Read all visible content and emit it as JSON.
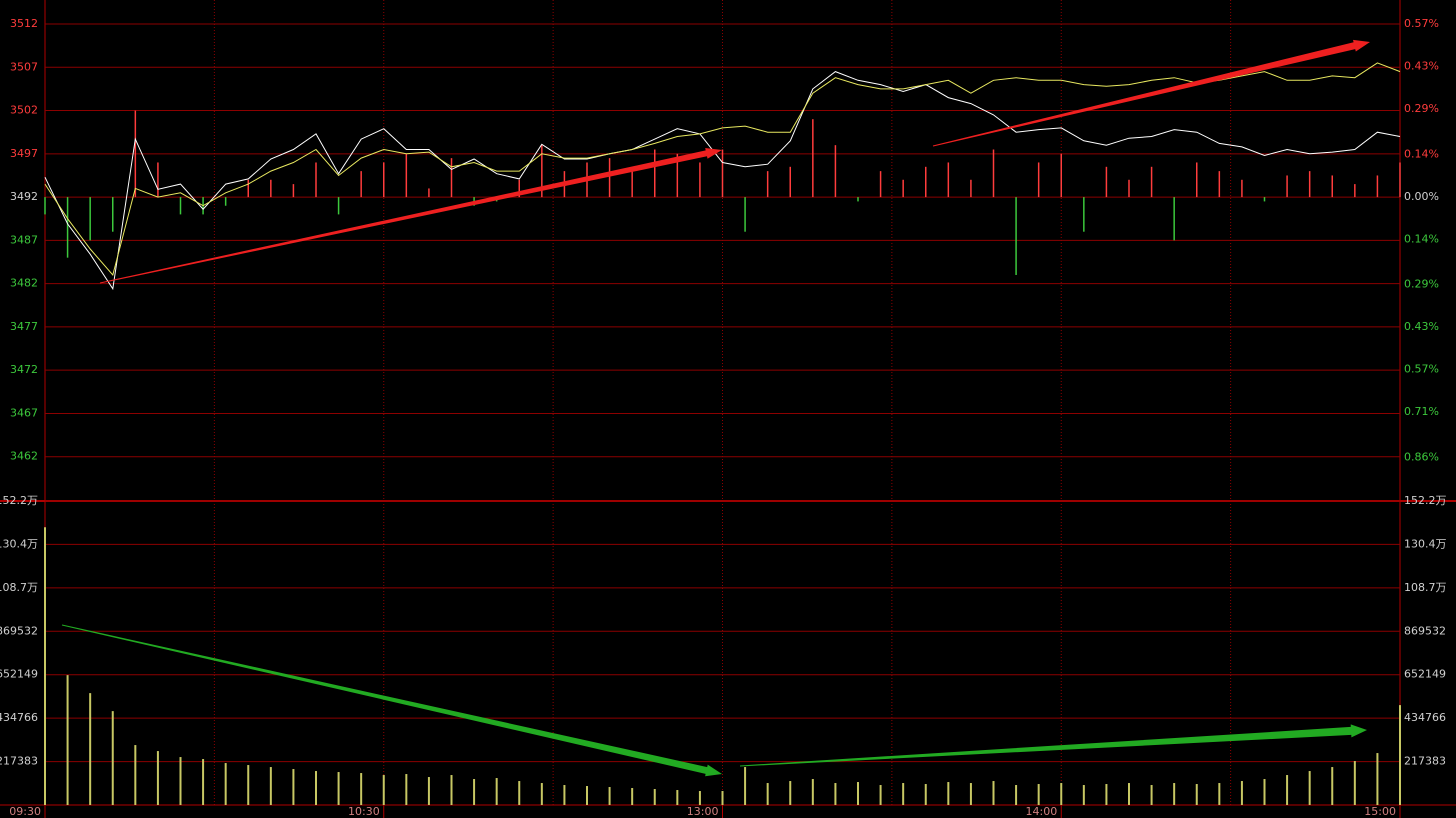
{
  "chart_data": [
    {
      "type": "line",
      "base": 3492,
      "ylim": [
        3457,
        3512
      ],
      "yticks": [
        3462,
        3467,
        3472,
        3477,
        3482,
        3487,
        3492,
        3497,
        3502,
        3507,
        3512
      ],
      "y2lim": [
        -1.0,
        0.57
      ],
      "y2ticks": [
        {
          "value": -0.86,
          "label": "0.86%"
        },
        {
          "value": -0.71,
          "label": "0.71%"
        },
        {
          "value": -0.57,
          "label": "0.57%"
        },
        {
          "value": -0.43,
          "label": "0.43%"
        },
        {
          "value": -0.29,
          "label": "0.29%"
        },
        {
          "value": -0.14,
          "label": "0.14%"
        },
        {
          "value": 0,
          "label": "0.00%"
        },
        {
          "value": 0.14,
          "label": "0.14%"
        },
        {
          "value": 0.29,
          "label": "0.29%"
        },
        {
          "value": 0.43,
          "label": "0.43%"
        },
        {
          "value": 0.57,
          "label": "0.57%"
        }
      ],
      "xlim": [
        0,
        240
      ],
      "x": [
        0,
        4,
        8,
        12,
        16,
        20,
        24,
        28,
        32,
        36,
        40,
        44,
        48,
        52,
        56,
        60,
        64,
        68,
        72,
        76,
        80,
        84,
        88,
        92,
        96,
        100,
        104,
        108,
        112,
        116,
        120,
        124,
        128,
        132,
        136,
        140,
        144,
        148,
        152,
        156,
        160,
        164,
        168,
        172,
        176,
        180,
        184,
        188,
        192,
        196,
        200,
        204,
        208,
        212,
        216,
        220,
        224,
        228,
        232,
        236,
        240
      ],
      "series": [
        {
          "color": "#ffffff",
          "values": [
            3494.3,
            3488.9,
            3485.4,
            3481.4,
            3498.7,
            3492.9,
            3493.5,
            3490.6,
            3493.5,
            3494.1,
            3496.4,
            3497.5,
            3499.3,
            3494.7,
            3498.7,
            3499.9,
            3497.5,
            3497.5,
            3495.2,
            3496.4,
            3494.7,
            3494.1,
            3498.1,
            3496.4,
            3496.4,
            3497.0,
            3497.5,
            3498.7,
            3499.9,
            3499.3,
            3496.0,
            3495.5,
            3495.8,
            3498.5,
            3504.5,
            3506.5,
            3505.5,
            3505.0,
            3504.2,
            3505.0,
            3503.5,
            3502.8,
            3501.5,
            3499.5,
            3499.8,
            3500.0,
            3498.5,
            3498.0,
            3498.8,
            3499.0,
            3499.8,
            3499.5,
            3498.2,
            3497.8,
            3496.8,
            3497.5,
            3497.0,
            3497.2,
            3497.5,
            3499.5,
            3499.0
          ]
        },
        {
          "color": "#e8e860",
          "values": [
            3493.5,
            3489.5,
            3486.0,
            3483.0,
            3493.0,
            3492.0,
            3492.5,
            3491.0,
            3492.5,
            3493.5,
            3495.0,
            3496.0,
            3497.5,
            3494.5,
            3496.5,
            3497.5,
            3497.0,
            3497.2,
            3495.5,
            3496.0,
            3495.0,
            3495.0,
            3497.0,
            3496.5,
            3496.5,
            3497.0,
            3497.5,
            3498.2,
            3499.0,
            3499.3,
            3500.0,
            3500.2,
            3499.5,
            3499.5,
            3504.0,
            3505.8,
            3505.0,
            3504.5,
            3504.5,
            3505.0,
            3505.5,
            3504.0,
            3505.5,
            3505.8,
            3505.5,
            3505.5,
            3505.0,
            3504.8,
            3505.0,
            3505.5,
            3505.8,
            3505.2,
            3505.5,
            3506.0,
            3506.5,
            3505.5,
            3505.5,
            3506.0,
            3505.8,
            3507.5,
            3506.5
          ]
        }
      ],
      "bars": [
        3490,
        3485,
        3487,
        3488,
        3502,
        3496,
        3490,
        3490,
        3491,
        3494,
        3494,
        3493.5,
        3496,
        3490,
        3495,
        3496,
        3497,
        3493,
        3496.5,
        3491,
        3491.5,
        3494,
        3498,
        3495,
        3496,
        3496.5,
        3495,
        3497.5,
        3497,
        3496,
        3497.5,
        3488,
        3495,
        3495.5,
        3501,
        3498,
        3491.5,
        3495,
        3494,
        3495.5,
        3496,
        3494,
        3497.5,
        3483,
        3496,
        3497,
        3488,
        3495.5,
        3494,
        3495.5,
        3487,
        3496,
        3495,
        3494,
        3491.5,
        3494.5,
        3495,
        3494.5,
        3493.5,
        3494.5,
        3496
      ],
      "up_color": "#ff3c3c",
      "down_color": "#3cc83c"
    },
    {
      "type": "bar",
      "color": "#c8c864",
      "ylim": [
        0,
        1521681
      ],
      "yticks": [
        217383,
        434766,
        652149,
        869532,
        {
          "value": 1086915,
          "label": "108.7万"
        },
        {
          "value": 1304298,
          "label": "130.4万"
        },
        {
          "value": 1521681,
          "label": "152.2万"
        }
      ],
      "xlim": [
        0,
        240
      ],
      "xticks": [
        {
          "value": 0,
          "label": "09:30"
        },
        {
          "value": 60,
          "label": "10:30"
        },
        {
          "value": 120,
          "label": "13:00"
        },
        {
          "value": 180,
          "label": "14:00"
        },
        {
          "value": 240,
          "label": "15:00"
        }
      ],
      "x": [
        0,
        4,
        8,
        12,
        16,
        20,
        24,
        28,
        32,
        36,
        40,
        44,
        48,
        52,
        56,
        60,
        64,
        68,
        72,
        76,
        80,
        84,
        88,
        92,
        96,
        100,
        104,
        108,
        112,
        116,
        120,
        124,
        128,
        132,
        136,
        140,
        144,
        148,
        152,
        156,
        160,
        164,
        168,
        172,
        176,
        180,
        184,
        188,
        192,
        196,
        200,
        204,
        208,
        212,
        216,
        220,
        224,
        228,
        232,
        236,
        240
      ],
      "values": [
        1390000,
        650000,
        560000,
        470000,
        300000,
        270000,
        240000,
        230000,
        210000,
        200000,
        190000,
        180000,
        170000,
        165000,
        160000,
        150000,
        155000,
        140000,
        150000,
        130000,
        135000,
        120000,
        110000,
        100000,
        95000,
        90000,
        85000,
        80000,
        75000,
        70000,
        70000,
        190000,
        110000,
        120000,
        130000,
        110000,
        115000,
        100000,
        110000,
        105000,
        115000,
        110000,
        120000,
        100000,
        105000,
        110000,
        100000,
        105000,
        110000,
        100000,
        110000,
        105000,
        110000,
        120000,
        130000,
        150000,
        170000,
        190000,
        220000,
        260000,
        500000
      ]
    }
  ]
}
